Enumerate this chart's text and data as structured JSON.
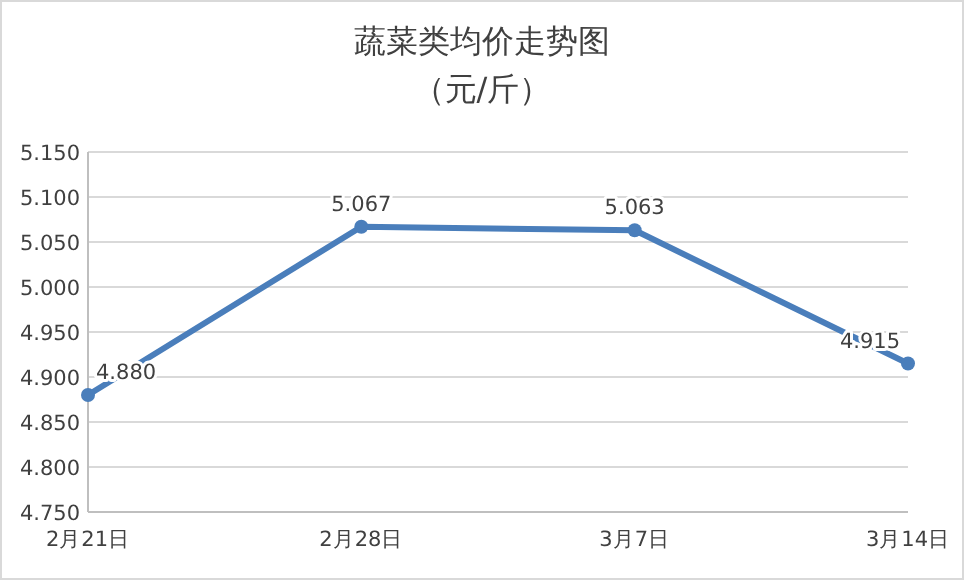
{
  "chart_data": {
    "type": "line",
    "title": "蔬菜类均价走势图",
    "subtitle": "（元/斤）",
    "categories": [
      "2月21日",
      "2月28日",
      "3月7日",
      "3月14日"
    ],
    "series": [
      {
        "color": "#4a7ebb",
        "values": [
          4.88,
          5.067,
          5.063,
          4.915
        ],
        "value_labels": [
          "4.880",
          "5.067",
          "5.063",
          "4.915"
        ]
      }
    ],
    "ylim": [
      4.75,
      5.15
    ],
    "yticks": [
      {
        "value": 4.75,
        "label": "4.750"
      },
      {
        "value": 4.8,
        "label": "4.800"
      },
      {
        "value": 4.85,
        "label": "4.850"
      },
      {
        "value": 4.9,
        "label": "4.900"
      },
      {
        "value": 4.95,
        "label": "4.950"
      },
      {
        "value": 5.0,
        "label": "5.000"
      },
      {
        "value": 5.05,
        "label": "5.050"
      },
      {
        "value": 5.1,
        "label": "5.100"
      },
      {
        "value": 5.15,
        "label": "5.150"
      }
    ],
    "grid": "y",
    "marker": "circle",
    "line_style": "solid"
  }
}
